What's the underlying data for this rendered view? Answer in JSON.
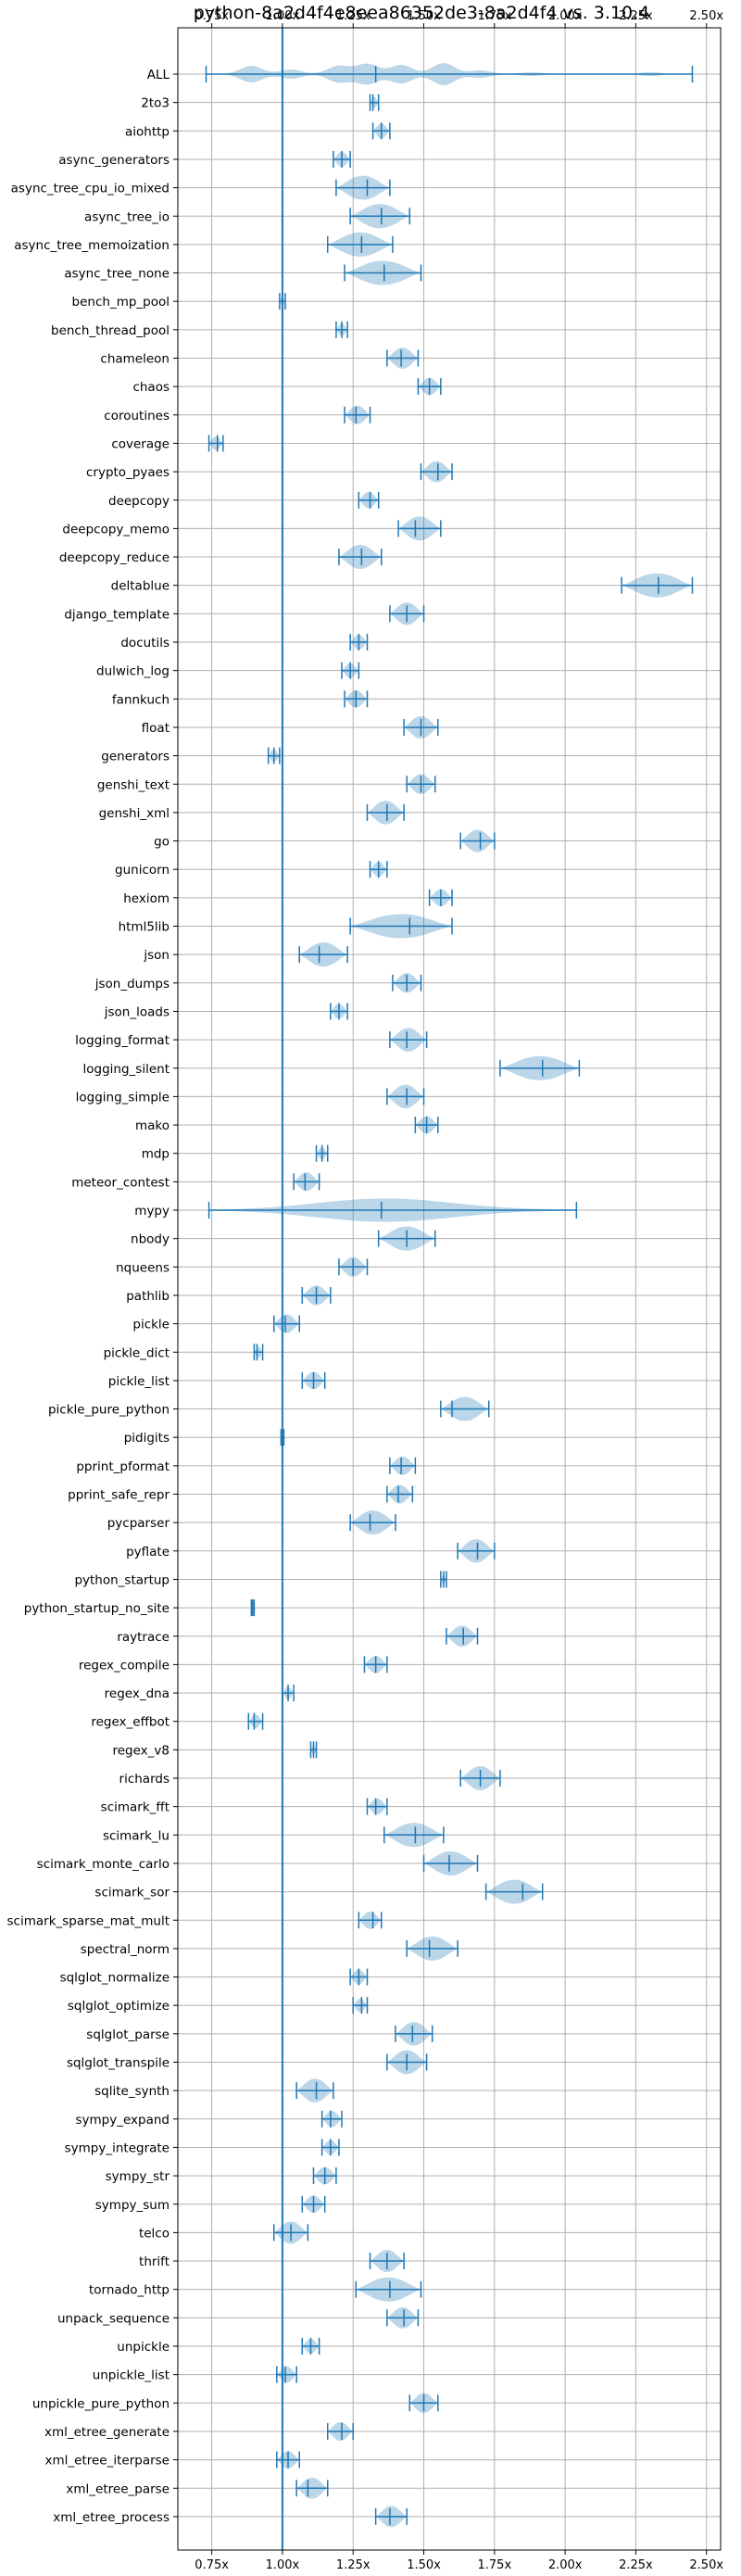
{
  "chart_data": {
    "type": "violin",
    "title": "python-8a2d4f4e8eea86352de3-8a2d4f4 vs. 3.10.4",
    "xlim": [
      0.63,
      2.55
    ],
    "xticks": [
      0.75,
      1.0,
      1.25,
      1.5,
      1.75,
      2.0,
      2.25,
      2.5
    ],
    "xtick_labels": [
      "0.75x",
      "1.00x",
      "1.25x",
      "1.50x",
      "1.75x",
      "2.00x",
      "2.25x",
      "2.50x"
    ],
    "reference_line": 1.0,
    "grid": true,
    "series": [
      {
        "name": "ALL",
        "min": 0.73,
        "max": 2.45,
        "median": 1.33,
        "shape": "multi"
      },
      {
        "name": "2to3",
        "min": 1.31,
        "max": 1.34,
        "median": 1.32
      },
      {
        "name": "aiohttp",
        "min": 1.32,
        "max": 1.38,
        "median": 1.35
      },
      {
        "name": "async_generators",
        "min": 1.18,
        "max": 1.24,
        "median": 1.21
      },
      {
        "name": "async_tree_cpu_io_mixed",
        "min": 1.19,
        "max": 1.38,
        "median": 1.3
      },
      {
        "name": "async_tree_io",
        "min": 1.24,
        "max": 1.45,
        "median": 1.35
      },
      {
        "name": "async_tree_memoization",
        "min": 1.16,
        "max": 1.39,
        "median": 1.28
      },
      {
        "name": "async_tree_none",
        "min": 1.22,
        "max": 1.49,
        "median": 1.36
      },
      {
        "name": "bench_mp_pool",
        "min": 0.99,
        "max": 1.01,
        "median": 1.0
      },
      {
        "name": "bench_thread_pool",
        "min": 1.19,
        "max": 1.23,
        "median": 1.21
      },
      {
        "name": "chameleon",
        "min": 1.37,
        "max": 1.48,
        "median": 1.42
      },
      {
        "name": "chaos",
        "min": 1.48,
        "max": 1.56,
        "median": 1.52
      },
      {
        "name": "coroutines",
        "min": 1.22,
        "max": 1.31,
        "median": 1.26
      },
      {
        "name": "coverage",
        "min": 0.74,
        "max": 0.79,
        "median": 0.77
      },
      {
        "name": "crypto_pyaes",
        "min": 1.49,
        "max": 1.6,
        "median": 1.55
      },
      {
        "name": "deepcopy",
        "min": 1.27,
        "max": 1.34,
        "median": 1.31
      },
      {
        "name": "deepcopy_memo",
        "min": 1.41,
        "max": 1.56,
        "median": 1.47
      },
      {
        "name": "deepcopy_reduce",
        "min": 1.2,
        "max": 1.35,
        "median": 1.28
      },
      {
        "name": "deltablue",
        "min": 2.2,
        "max": 2.45,
        "median": 2.33
      },
      {
        "name": "django_template",
        "min": 1.38,
        "max": 1.5,
        "median": 1.44
      },
      {
        "name": "docutils",
        "min": 1.24,
        "max": 1.3,
        "median": 1.27
      },
      {
        "name": "dulwich_log",
        "min": 1.21,
        "max": 1.27,
        "median": 1.24
      },
      {
        "name": "fannkuch",
        "min": 1.22,
        "max": 1.3,
        "median": 1.26
      },
      {
        "name": "float",
        "min": 1.43,
        "max": 1.55,
        "median": 1.49
      },
      {
        "name": "generators",
        "min": 0.95,
        "max": 0.99,
        "median": 0.97
      },
      {
        "name": "genshi_text",
        "min": 1.44,
        "max": 1.54,
        "median": 1.49
      },
      {
        "name": "genshi_xml",
        "min": 1.3,
        "max": 1.43,
        "median": 1.37
      },
      {
        "name": "go",
        "min": 1.63,
        "max": 1.75,
        "median": 1.7
      },
      {
        "name": "gunicorn",
        "min": 1.31,
        "max": 1.37,
        "median": 1.34
      },
      {
        "name": "hexiom",
        "min": 1.52,
        "max": 1.6,
        "median": 1.56
      },
      {
        "name": "html5lib",
        "min": 1.24,
        "max": 1.6,
        "median": 1.45
      },
      {
        "name": "json",
        "min": 1.06,
        "max": 1.23,
        "median": 1.13
      },
      {
        "name": "json_dumps",
        "min": 1.39,
        "max": 1.49,
        "median": 1.44
      },
      {
        "name": "json_loads",
        "min": 1.17,
        "max": 1.23,
        "median": 1.2
      },
      {
        "name": "logging_format",
        "min": 1.38,
        "max": 1.51,
        "median": 1.44
      },
      {
        "name": "logging_silent",
        "min": 1.77,
        "max": 2.05,
        "median": 1.92
      },
      {
        "name": "logging_simple",
        "min": 1.37,
        "max": 1.5,
        "median": 1.44
      },
      {
        "name": "mako",
        "min": 1.47,
        "max": 1.55,
        "median": 1.51
      },
      {
        "name": "mdp",
        "min": 1.12,
        "max": 1.16,
        "median": 1.14
      },
      {
        "name": "meteor_contest",
        "min": 1.04,
        "max": 1.13,
        "median": 1.08
      },
      {
        "name": "mypy",
        "min": 0.74,
        "max": 2.04,
        "median": 1.35,
        "shape": "wide"
      },
      {
        "name": "nbody",
        "min": 1.34,
        "max": 1.54,
        "median": 1.44
      },
      {
        "name": "nqueens",
        "min": 1.2,
        "max": 1.3,
        "median": 1.25
      },
      {
        "name": "pathlib",
        "min": 1.07,
        "max": 1.17,
        "median": 1.12
      },
      {
        "name": "pickle",
        "min": 0.97,
        "max": 1.06,
        "median": 1.01
      },
      {
        "name": "pickle_dict",
        "min": 0.9,
        "max": 0.93,
        "median": 0.91
      },
      {
        "name": "pickle_list",
        "min": 1.07,
        "max": 1.15,
        "median": 1.11
      },
      {
        "name": "pickle_pure_python",
        "min": 1.56,
        "max": 1.73,
        "median": 1.6
      },
      {
        "name": "pidigits",
        "min": 0.995,
        "max": 1.005,
        "median": 1.0
      },
      {
        "name": "pprint_pformat",
        "min": 1.38,
        "max": 1.47,
        "median": 1.42
      },
      {
        "name": "pprint_safe_repr",
        "min": 1.37,
        "max": 1.46,
        "median": 1.41
      },
      {
        "name": "pycparser",
        "min": 1.24,
        "max": 1.4,
        "median": 1.31
      },
      {
        "name": "pyflate",
        "min": 1.62,
        "max": 1.75,
        "median": 1.69
      },
      {
        "name": "python_startup",
        "min": 1.56,
        "max": 1.58,
        "median": 1.57
      },
      {
        "name": "python_startup_no_site",
        "min": 0.89,
        "max": 0.9,
        "median": 0.895
      },
      {
        "name": "raytrace",
        "min": 1.58,
        "max": 1.69,
        "median": 1.64
      },
      {
        "name": "regex_compile",
        "min": 1.29,
        "max": 1.37,
        "median": 1.33
      },
      {
        "name": "regex_dna",
        "min": 1.0,
        "max": 1.04,
        "median": 1.02
      },
      {
        "name": "regex_effbot",
        "min": 0.88,
        "max": 0.93,
        "median": 0.9
      },
      {
        "name": "regex_v8",
        "min": 1.1,
        "max": 1.12,
        "median": 1.11
      },
      {
        "name": "richards",
        "min": 1.63,
        "max": 1.77,
        "median": 1.7
      },
      {
        "name": "scimark_fft",
        "min": 1.3,
        "max": 1.37,
        "median": 1.33
      },
      {
        "name": "scimark_lu",
        "min": 1.36,
        "max": 1.57,
        "median": 1.47
      },
      {
        "name": "scimark_monte_carlo",
        "min": 1.5,
        "max": 1.69,
        "median": 1.59
      },
      {
        "name": "scimark_sor",
        "min": 1.72,
        "max": 1.92,
        "median": 1.85
      },
      {
        "name": "scimark_sparse_mat_mult",
        "min": 1.27,
        "max": 1.35,
        "median": 1.32
      },
      {
        "name": "spectral_norm",
        "min": 1.44,
        "max": 1.62,
        "median": 1.52
      },
      {
        "name": "sqlglot_normalize",
        "min": 1.24,
        "max": 1.3,
        "median": 1.27
      },
      {
        "name": "sqlglot_optimize",
        "min": 1.25,
        "max": 1.3,
        "median": 1.28
      },
      {
        "name": "sqlglot_parse",
        "min": 1.4,
        "max": 1.53,
        "median": 1.46
      },
      {
        "name": "sqlglot_transpile",
        "min": 1.37,
        "max": 1.51,
        "median": 1.44
      },
      {
        "name": "sqlite_synth",
        "min": 1.05,
        "max": 1.18,
        "median": 1.12
      },
      {
        "name": "sympy_expand",
        "min": 1.14,
        "max": 1.21,
        "median": 1.17
      },
      {
        "name": "sympy_integrate",
        "min": 1.14,
        "max": 1.2,
        "median": 1.17
      },
      {
        "name": "sympy_str",
        "min": 1.11,
        "max": 1.19,
        "median": 1.15
      },
      {
        "name": "sympy_sum",
        "min": 1.07,
        "max": 1.15,
        "median": 1.11
      },
      {
        "name": "telco",
        "min": 0.97,
        "max": 1.09,
        "median": 1.03
      },
      {
        "name": "thrift",
        "min": 1.31,
        "max": 1.43,
        "median": 1.37
      },
      {
        "name": "tornado_http",
        "min": 1.26,
        "max": 1.49,
        "median": 1.38
      },
      {
        "name": "unpack_sequence",
        "min": 1.37,
        "max": 1.48,
        "median": 1.43
      },
      {
        "name": "unpickle",
        "min": 1.07,
        "max": 1.13,
        "median": 1.1
      },
      {
        "name": "unpickle_list",
        "min": 0.98,
        "max": 1.05,
        "median": 1.01
      },
      {
        "name": "unpickle_pure_python",
        "min": 1.45,
        "max": 1.55,
        "median": 1.5
      },
      {
        "name": "xml_etree_generate",
        "min": 1.16,
        "max": 1.25,
        "median": 1.21
      },
      {
        "name": "xml_etree_iterparse",
        "min": 0.98,
        "max": 1.06,
        "median": 1.02
      },
      {
        "name": "xml_etree_parse",
        "min": 1.05,
        "max": 1.16,
        "median": 1.09
      },
      {
        "name": "xml_etree_process",
        "min": 1.33,
        "max": 1.44,
        "median": 1.38
      }
    ]
  }
}
